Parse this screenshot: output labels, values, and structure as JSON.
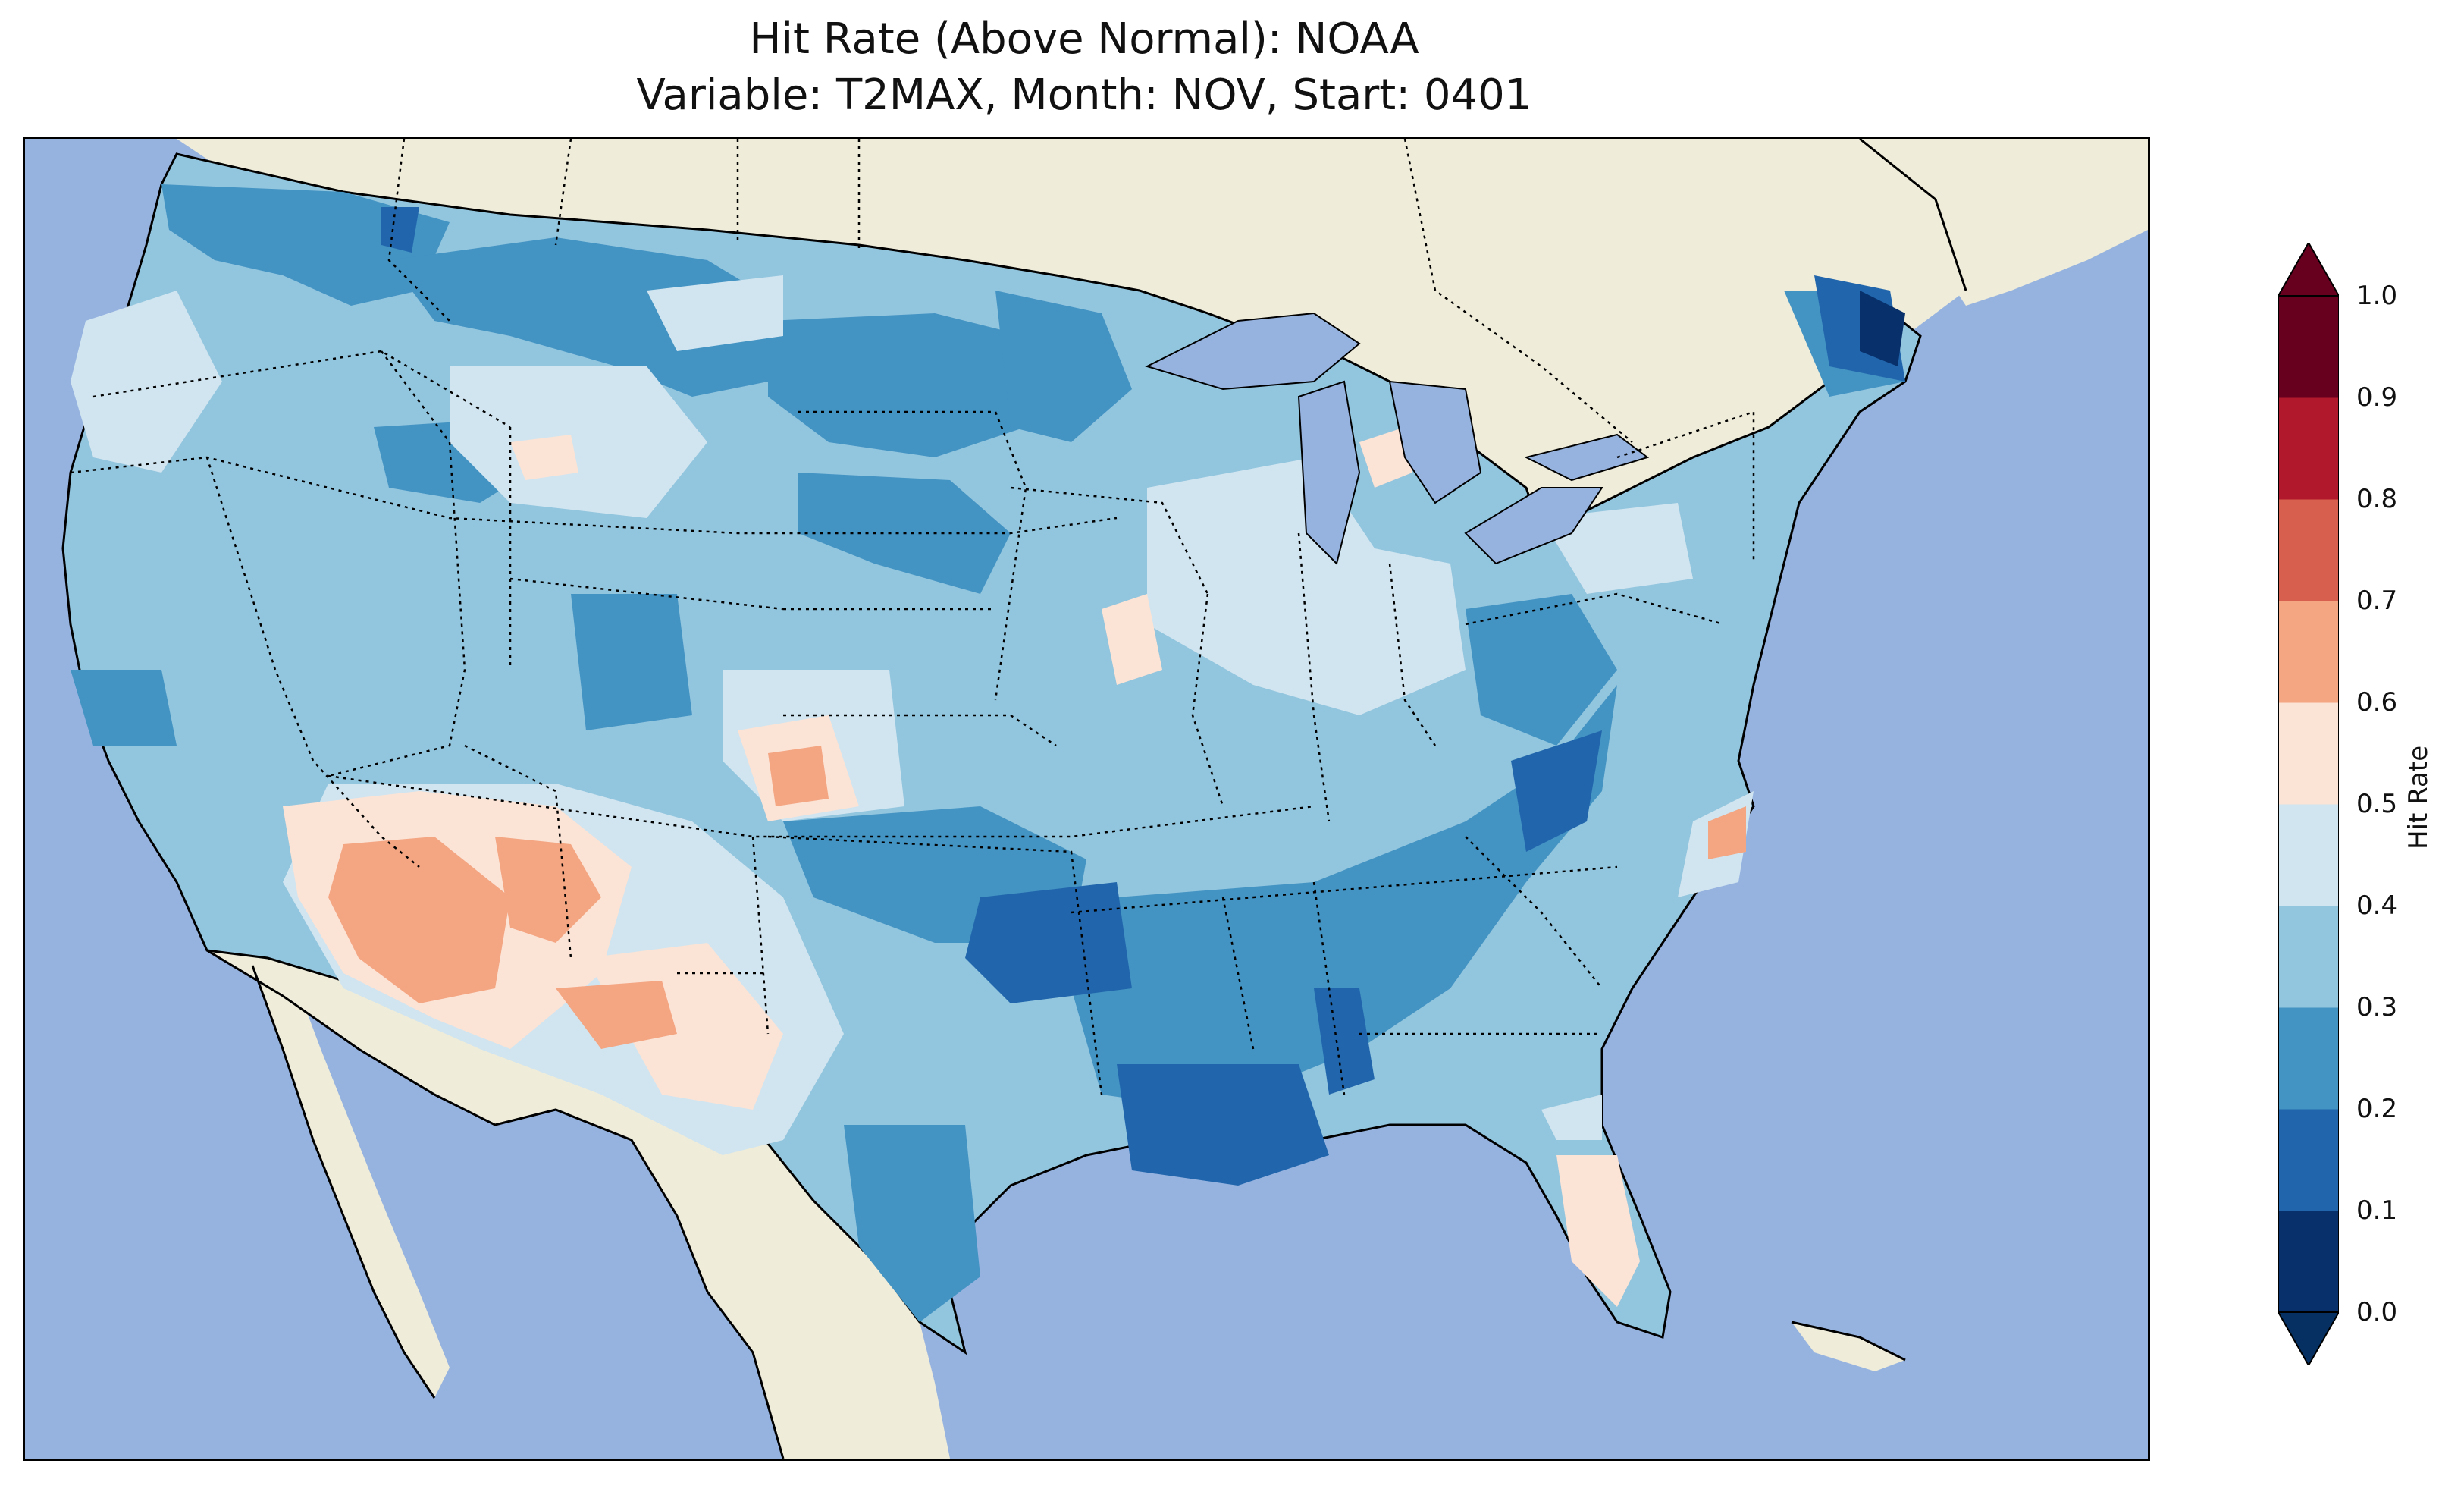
{
  "title": {
    "line1": "Hit Rate (Above Normal): NOAA",
    "line2": "Variable: T2MAX, Month: NOV, Start: 0401"
  },
  "colorbar": {
    "label": "Hit Rate",
    "ticks": [
      "0.0",
      "0.1",
      "0.2",
      "0.3",
      "0.4",
      "0.5",
      "0.6",
      "0.7",
      "0.8",
      "0.9",
      "1.0"
    ],
    "colors": [
      "#08306b",
      "#2166ac",
      "#4393c3",
      "#92c5de",
      "#d1e5f0",
      "#fbe3d6",
      "#f4a582",
      "#d6604d",
      "#b2182b",
      "#67001f"
    ],
    "under_color": "#053061",
    "over_color": "#67001f"
  },
  "map": {
    "ocean_color": "#96b3e0",
    "land_color": "#efecd9",
    "lake_color": "#96b3e0"
  }
}
